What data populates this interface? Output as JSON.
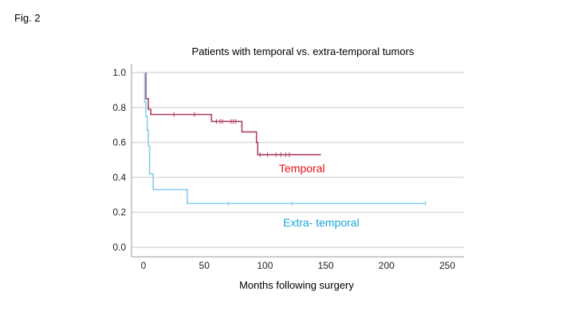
{
  "figure_label": "Fig. 2",
  "chart_data": {
    "type": "line",
    "subtype": "kaplan-meier",
    "title": "Patients with temporal vs. extra-temporal tumors",
    "xlabel": "Months following surgery",
    "ylabel": "",
    "xlim": [
      -10,
      265
    ],
    "ylim": [
      -0.05,
      1.05
    ],
    "xticks": [
      0,
      50,
      100,
      150,
      200,
      250
    ],
    "yticks": [
      "0.0",
      "0.2",
      "0.4",
      "0.6",
      "0.8",
      "1.0"
    ],
    "grid": "horizontal",
    "series": [
      {
        "name": "Temporal",
        "color": "#b0406a",
        "label_color": "#e0101a",
        "steps": [
          [
            2,
            1.0
          ],
          [
            2,
            0.85
          ],
          [
            4,
            0.79
          ],
          [
            6,
            0.76
          ],
          [
            56,
            0.72
          ],
          [
            81,
            0.66
          ],
          [
            93,
            0.6
          ],
          [
            94,
            0.53
          ],
          [
            146,
            0.53
          ]
        ],
        "censored": [
          25,
          42,
          60,
          63,
          65,
          72,
          74,
          76,
          96,
          102,
          109,
          113,
          117,
          120
        ]
      },
      {
        "name": "Extra- temporal",
        "color": "#86cdee",
        "label_color": "#1aa8d8",
        "steps": [
          [
            1,
            1.0
          ],
          [
            1,
            0.83
          ],
          [
            2,
            0.75
          ],
          [
            3,
            0.67
          ],
          [
            4,
            0.58
          ],
          [
            5,
            0.42
          ],
          [
            8,
            0.33
          ],
          [
            36,
            0.25
          ],
          [
            232,
            0.25
          ]
        ],
        "censored": [
          70,
          122,
          232
        ]
      }
    ]
  }
}
